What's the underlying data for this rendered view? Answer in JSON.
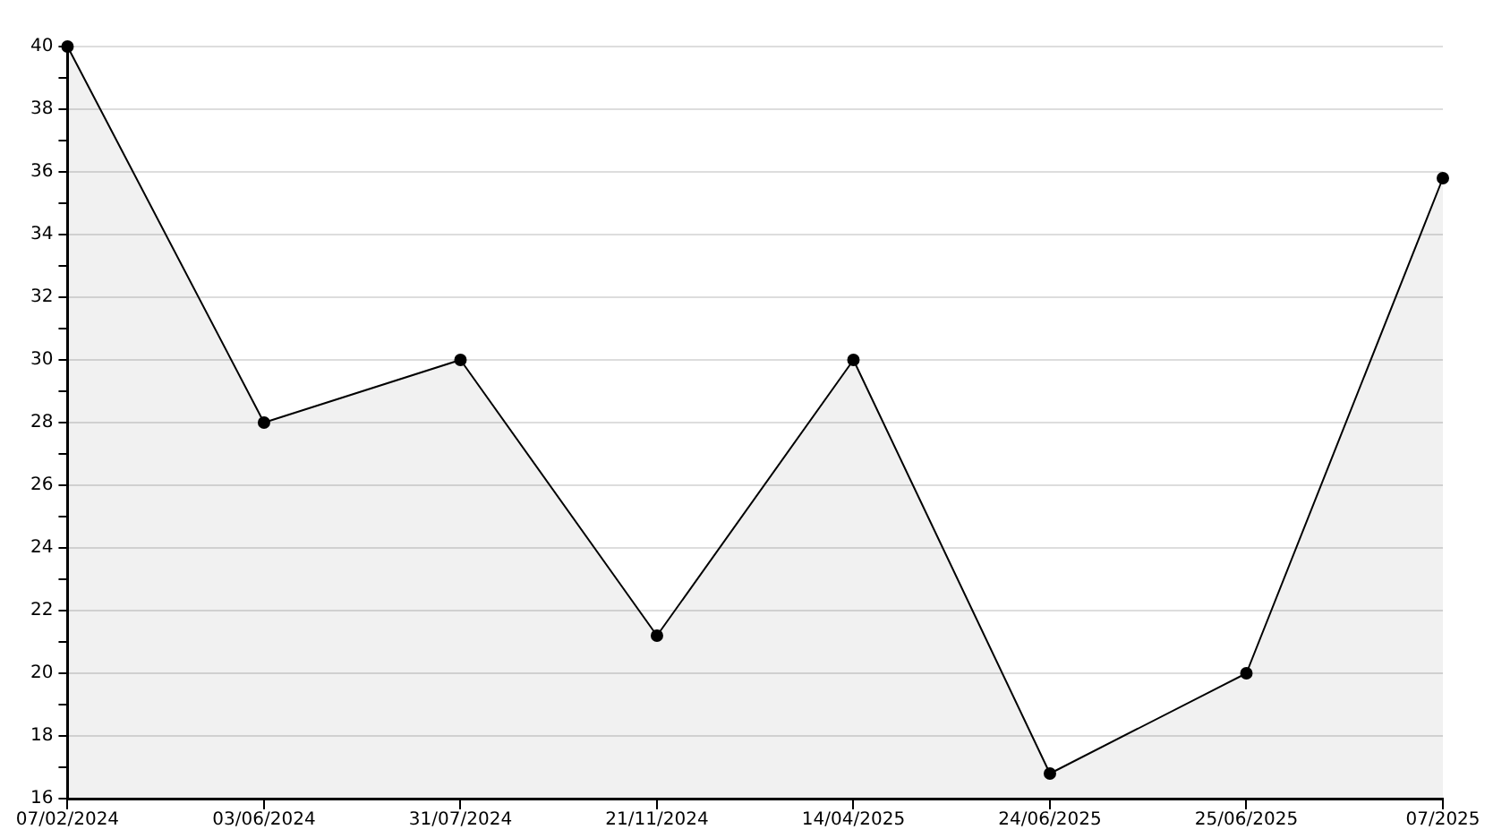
{
  "chart_data": {
    "type": "area",
    "categories": [
      "07/02/2024",
      "03/06/2024",
      "31/07/2024",
      "21/11/2024",
      "14/04/2025",
      "24/06/2025",
      "25/06/2025",
      "07/2025"
    ],
    "series": [
      {
        "color": "#000000",
        "values": [
          40,
          28,
          30,
          21.2,
          30,
          16.8,
          20,
          35.8
        ]
      }
    ],
    "ylim": [
      16,
      40
    ],
    "yticks": [
      16,
      {
        "value": 17,
        "label": null
      },
      18,
      {
        "value": 19,
        "label": null
      },
      20,
      {
        "value": 21,
        "label": null
      },
      22,
      {
        "value": 23,
        "label": null
      },
      24,
      {
        "value": 25,
        "label": null
      },
      26,
      {
        "value": 27,
        "label": null
      },
      28,
      {
        "value": 29,
        "label": null
      },
      30,
      {
        "value": 31,
        "label": null
      },
      32,
      {
        "value": 33,
        "label": null
      },
      34,
      {
        "value": 35,
        "label": null
      },
      36,
      {
        "value": 37,
        "label": null
      },
      38,
      {
        "value": 39,
        "label": null
      },
      40
    ],
    "grid": "y",
    "marker": "circle",
    "line_style": "solid",
    "legend": false
  }
}
